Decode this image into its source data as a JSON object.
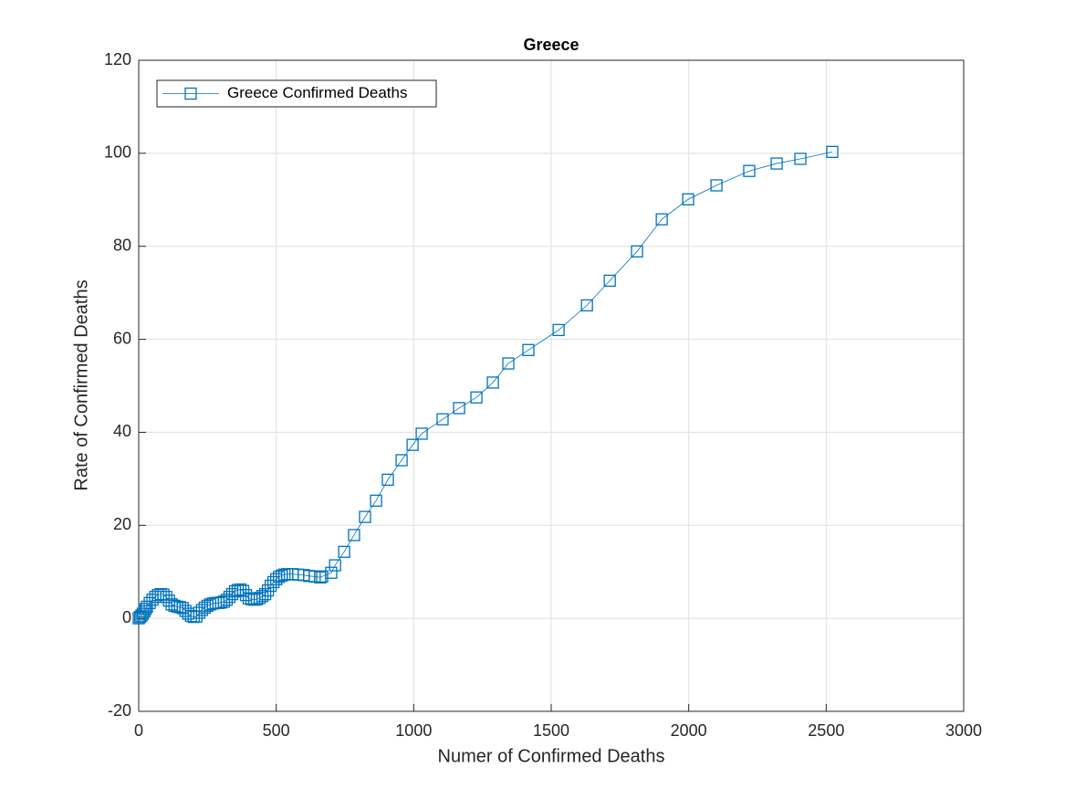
{
  "chart_data": {
    "type": "line",
    "title": "Greece",
    "x_label": "Numer of Confirmed Deaths",
    "y_label": "Rate of Confirmed Deaths",
    "x": [
      0,
      5,
      10,
      15,
      20,
      25,
      30,
      40,
      50,
      60,
      70,
      80,
      90,
      100,
      110,
      120,
      130,
      140,
      150,
      160,
      170,
      180,
      190,
      200,
      210,
      220,
      230,
      240,
      250,
      260,
      270,
      280,
      290,
      300,
      310,
      320,
      330,
      340,
      350,
      360,
      370,
      380,
      390,
      400,
      410,
      420,
      430,
      440,
      450,
      460,
      470,
      480,
      490,
      500,
      510,
      520,
      530,
      540,
      560,
      580,
      600,
      620,
      640,
      660,
      667,
      700,
      714,
      747,
      783,
      823,
      863,
      906,
      956,
      996,
      1029,
      1105,
      1165,
      1228,
      1288,
      1344,
      1417,
      1527,
      1630,
      1713,
      1812,
      1902,
      1998,
      2101,
      2220,
      2320,
      2406,
      2522
    ],
    "series": [
      {
        "name": "Greece Confirmed Deaths",
        "color": "#0072bd",
        "marker": "square",
        "values": [
          0,
          0.3,
          0.6,
          1.0,
          1.5,
          2.0,
          2.5,
          3.3,
          4.0,
          4.6,
          5.0,
          5.2,
          5.1,
          4.6,
          3.8,
          3.0,
          2.7,
          2.5,
          2.4,
          2.2,
          1.6,
          1.0,
          0.5,
          0.3,
          0.4,
          1.2,
          1.8,
          2.3,
          2.7,
          3.0,
          3.2,
          3.3,
          3.3,
          3.4,
          3.6,
          4.0,
          4.6,
          5.2,
          5.8,
          6.1,
          6.2,
          5.9,
          5.0,
          4.3,
          4.1,
          4.0,
          4.1,
          4.4,
          4.8,
          5.2,
          6.0,
          7.0,
          7.8,
          8.4,
          8.9,
          9.2,
          9.4,
          9.5,
          9.5,
          9.4,
          9.3,
          9.1,
          9.0,
          8.8,
          9.0,
          9.8,
          11.4,
          14.3,
          17.9,
          21.8,
          25.3,
          29.8,
          34.0,
          37.3,
          39.7,
          42.8,
          45.2,
          47.5,
          50.7,
          54.8,
          57.7,
          62.0,
          67.3,
          72.6,
          78.9,
          85.8,
          90.1,
          93.1,
          96.2,
          97.8,
          98.8,
          100.3
        ]
      }
    ],
    "xlim": [
      0,
      3000
    ],
    "xticks": [
      0,
      500,
      1000,
      1500,
      2000,
      2500,
      3000
    ],
    "ylim": [
      -20,
      120
    ],
    "yticks": [
      -20,
      0,
      20,
      40,
      60,
      80,
      100,
      120
    ],
    "grid": true,
    "legend": "northwest"
  }
}
